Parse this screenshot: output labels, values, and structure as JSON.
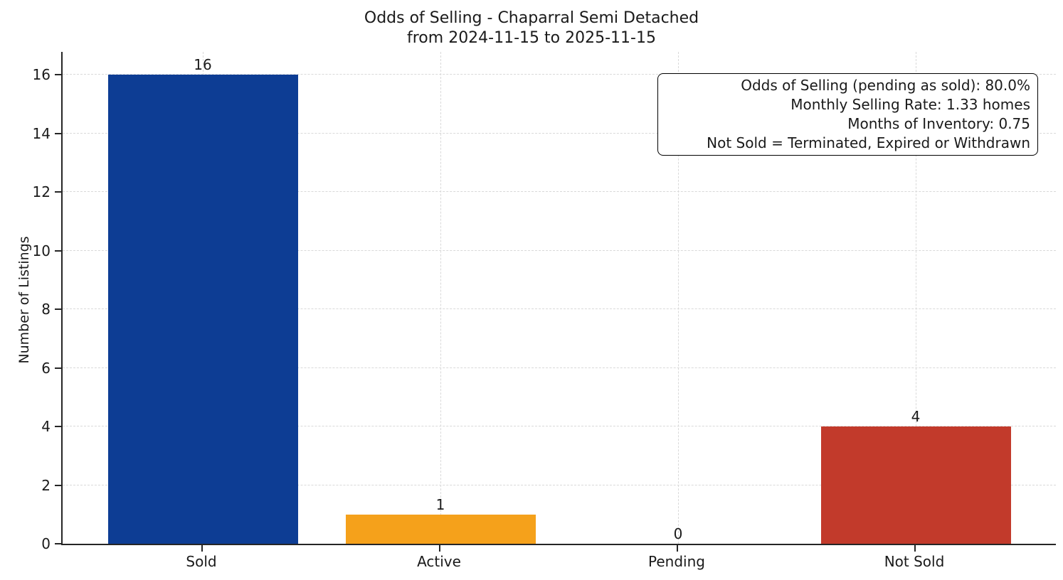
{
  "chart_data": {
    "type": "bar",
    "title": "Odds of Selling - Chaparral Semi Detached",
    "subtitle": "from 2024-11-15 to 2025-11-15",
    "categories": [
      "Sold",
      "Active",
      "Pending",
      "Not Sold"
    ],
    "values": [
      16,
      1,
      0,
      4
    ],
    "bar_colors": [
      "#0d3d94",
      "#f5a11b",
      "#808080",
      "#c23a2b"
    ],
    "xlabel": "",
    "ylabel": "Number of Listings",
    "yticks": [
      0,
      2,
      4,
      6,
      8,
      10,
      12,
      14,
      16
    ],
    "ylim": [
      0,
      16.78
    ],
    "grid": "dashed, light gray, horizontal and vertical",
    "legend_position": "none",
    "annotation": {
      "lines": [
        "Odds of Selling (pending as sold): 80.0%",
        "Monthly Selling Rate: 1.33 homes",
        "Months of Inventory: 0.75",
        "Not Sold = Terminated, Expired or Withdrawn"
      ],
      "position": "top-right",
      "border_color": "#000000",
      "background": "#ffffff"
    },
    "colors": {
      "axis": "#262626",
      "grid": "#d9d9d9",
      "text": "#1a1a1a",
      "background": "#ffffff"
    }
  }
}
